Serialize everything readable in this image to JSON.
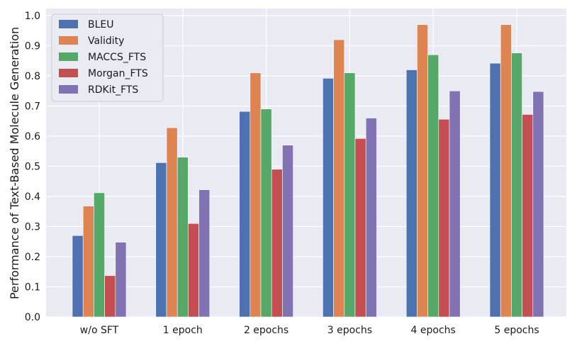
{
  "chart_data": {
    "type": "bar",
    "categories": [
      "w/o SFT",
      "1 epoch",
      "2 epochs",
      "3 epochs",
      "4 epochs",
      "5 epochs"
    ],
    "series": [
      {
        "name": "BLEU",
        "color": "#4c72b0",
        "values": [
          0.27,
          0.512,
          0.682,
          0.792,
          0.82,
          0.842
        ]
      },
      {
        "name": "Validity",
        "color": "#dd8452",
        "values": [
          0.368,
          0.628,
          0.81,
          0.92,
          0.97,
          0.97
        ]
      },
      {
        "name": "MACCS_FTS",
        "color": "#55a868",
        "values": [
          0.412,
          0.53,
          0.69,
          0.81,
          0.87,
          0.876
        ]
      },
      {
        "name": "Morgan_FTS",
        "color": "#c44e52",
        "values": [
          0.137,
          0.31,
          0.49,
          0.592,
          0.656,
          0.672
        ]
      },
      {
        "name": "RDKit_FTS",
        "color": "#8172b3",
        "values": [
          0.248,
          0.422,
          0.57,
          0.66,
          0.75,
          0.748
        ]
      }
    ],
    "ylabel": "Performance of Text-Based Molecule Generation",
    "xlabel": "",
    "ylim": [
      0,
      1.0
    ],
    "yticks": [
      "0.0",
      "0.1",
      "0.2",
      "0.3",
      "0.4",
      "0.5",
      "0.6",
      "0.7",
      "0.8",
      "0.9",
      "1.0"
    ],
    "grid": true,
    "legend_position": "top-left",
    "background_color": "#eaeaf2"
  }
}
